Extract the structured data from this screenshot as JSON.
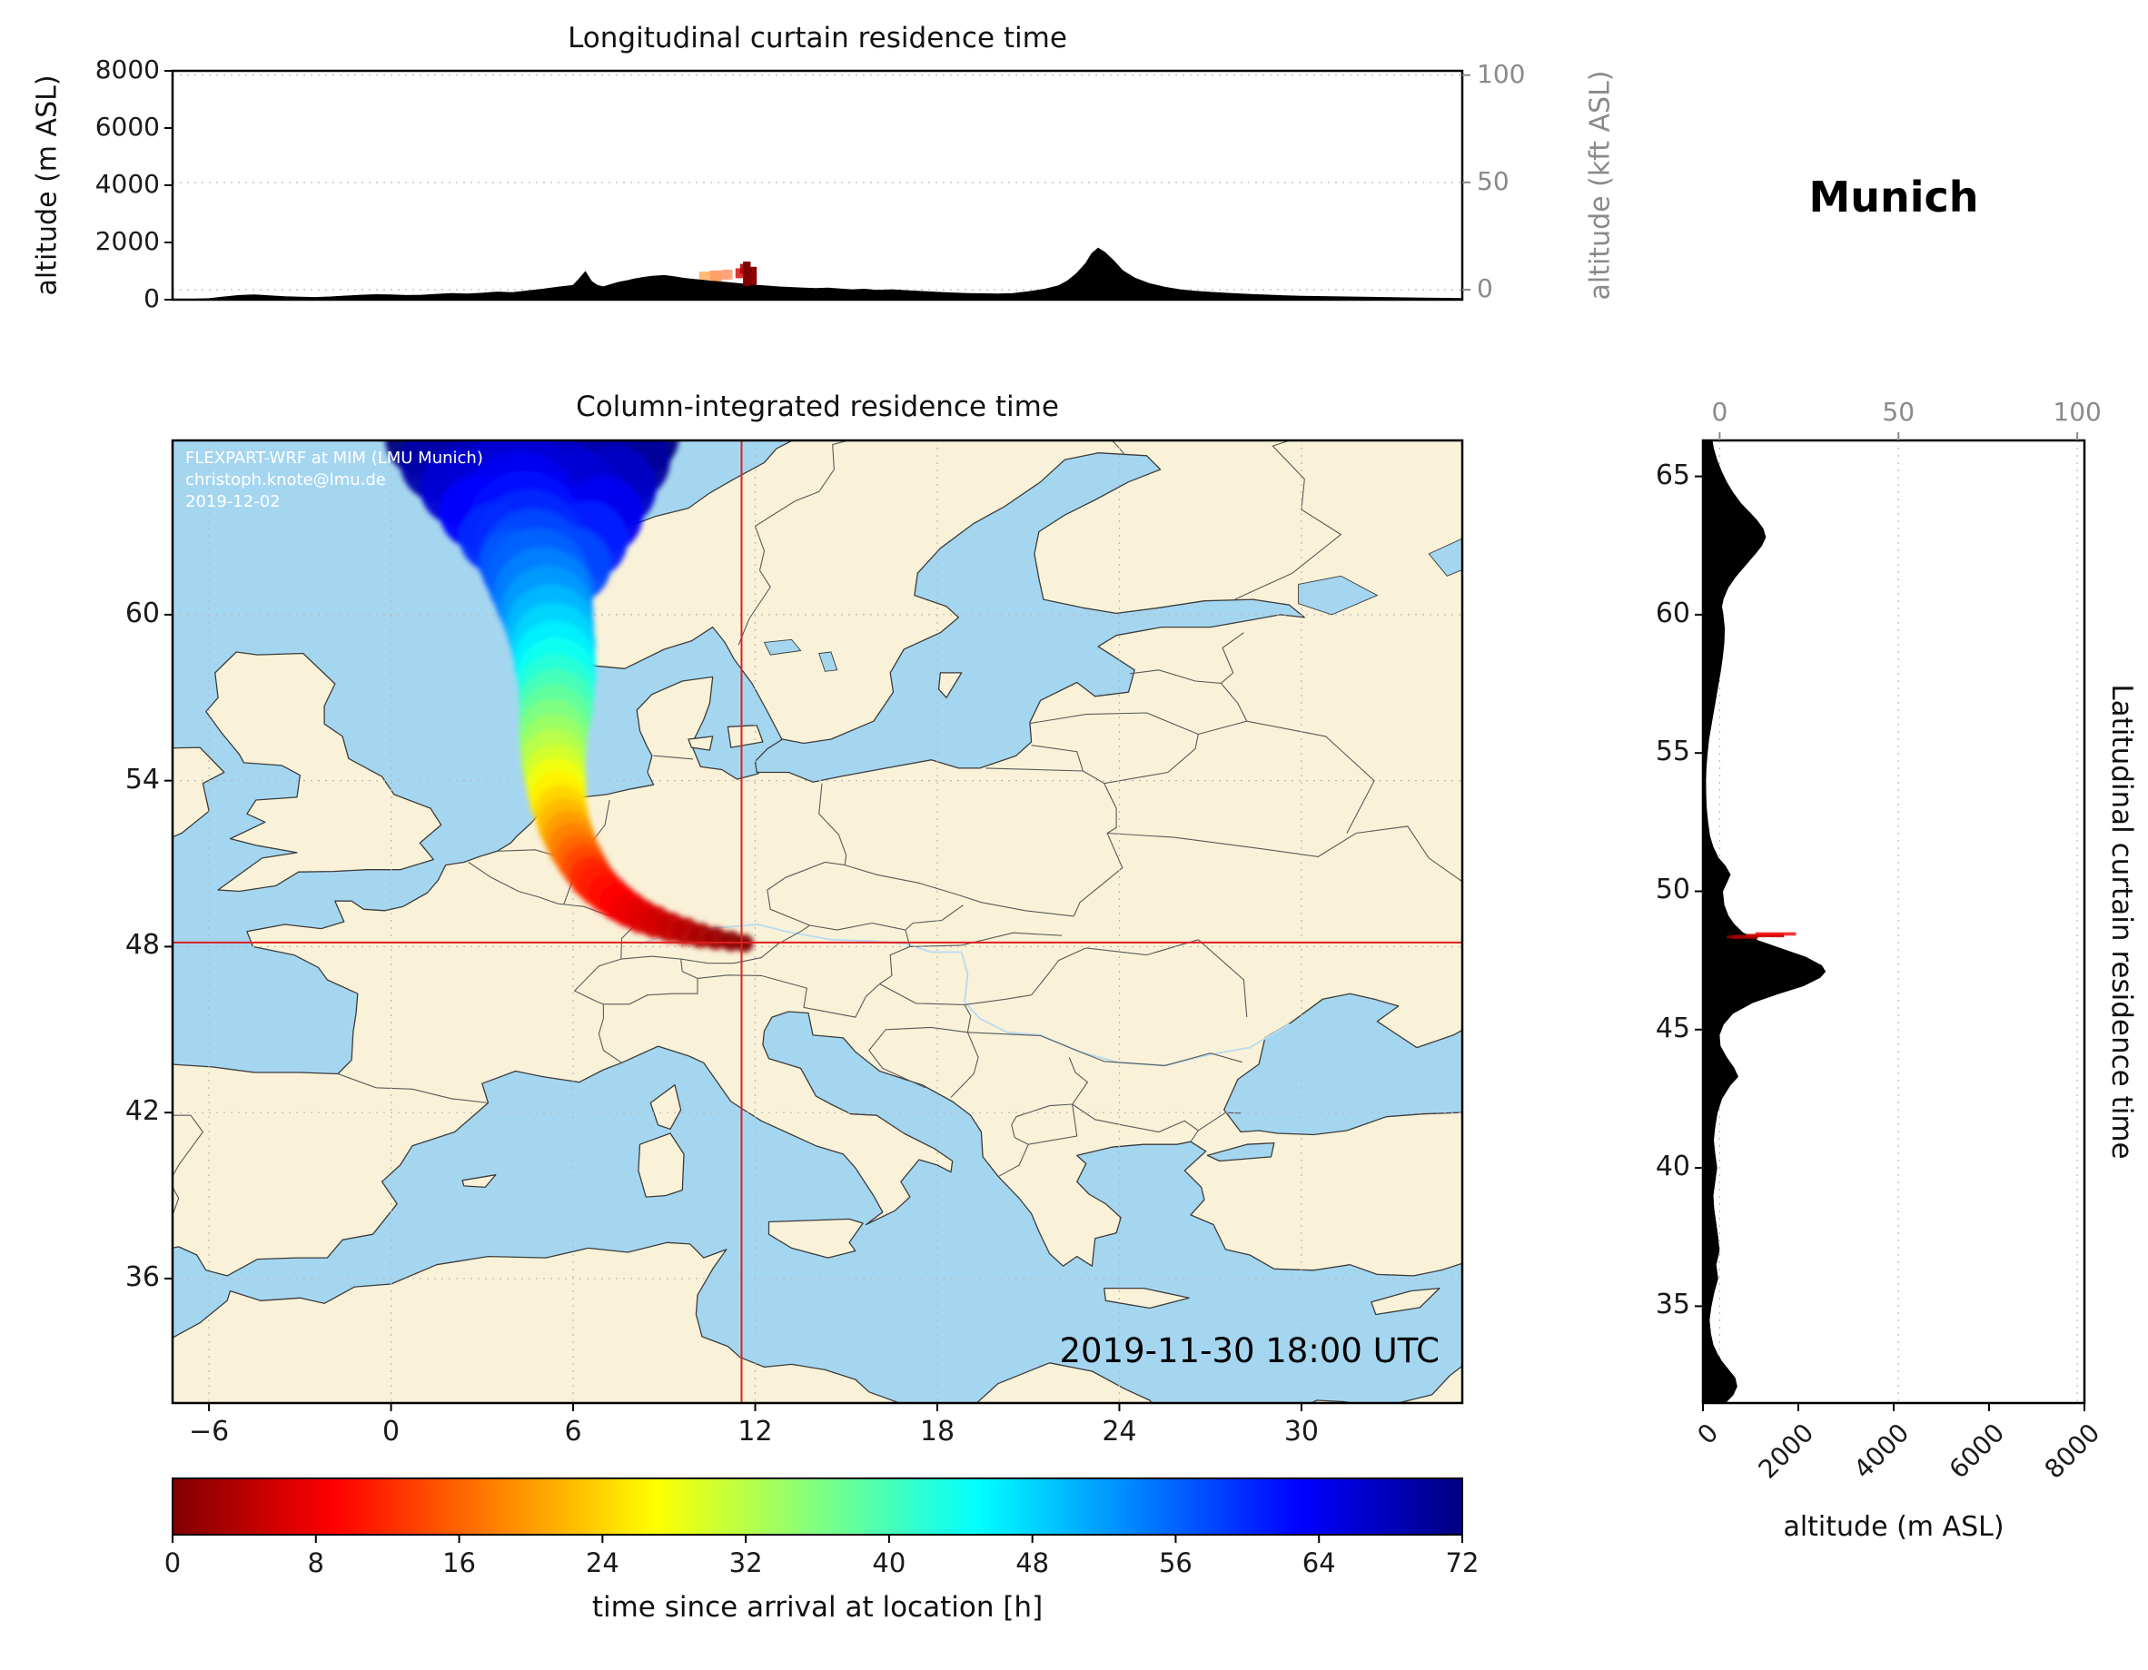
{
  "meta": {
    "location_title": "Munich",
    "credit": [
      "FLEXPART-WRF at MIM (LMU Munich)",
      "christoph.knote@lmu.de",
      "2019-12-02"
    ],
    "timestamp": "2019-11-30 18:00 UTC"
  },
  "colors": {
    "ocean": "#a5d6f0",
    "land": "#f9f2d8",
    "coast": "#3c3c3c",
    "border": "#5a5a5a",
    "grid": "#b9b9b9",
    "crosshair": "#dd1f1f",
    "terrain": "#000000",
    "axis_gray": "#8a8a8a",
    "river": "#bcdcee"
  },
  "chart_data": [
    {
      "id": "longitudinal_curtain",
      "type": "area",
      "title": "Longitudinal curtain residence time",
      "ylabel_left": "altitude (m ASL)",
      "ylabel_right": "altitude (kft ASL)",
      "xlim": [
        -7.2,
        35.3
      ],
      "ylim": [
        0,
        8000
      ],
      "yticks_left": [
        0,
        2000,
        4000,
        6000,
        8000
      ],
      "yticks_right": [
        0,
        50,
        100
      ],
      "kft_to_m": {
        "offset": 350,
        "scale": 75
      },
      "terrain_profile": [
        [
          -7.2,
          0
        ],
        [
          -6.5,
          0
        ],
        [
          -6,
          20
        ],
        [
          -5.5,
          80
        ],
        [
          -5,
          130
        ],
        [
          -4.5,
          150
        ],
        [
          -4,
          120
        ],
        [
          -3.5,
          90
        ],
        [
          -3,
          70
        ],
        [
          -2.5,
          60
        ],
        [
          -2,
          80
        ],
        [
          -1.5,
          110
        ],
        [
          -1,
          140
        ],
        [
          -0.5,
          160
        ],
        [
          0,
          150
        ],
        [
          0.5,
          130
        ],
        [
          1,
          140
        ],
        [
          1.5,
          170
        ],
        [
          2,
          200
        ],
        [
          2.5,
          180
        ],
        [
          3,
          210
        ],
        [
          3.5,
          250
        ],
        [
          4,
          230
        ],
        [
          4.5,
          290
        ],
        [
          5,
          350
        ],
        [
          5.5,
          420
        ],
        [
          6,
          480
        ],
        [
          6.2,
          700
        ],
        [
          6.4,
          950
        ],
        [
          6.6,
          620
        ],
        [
          6.8,
          480
        ],
        [
          7,
          430
        ],
        [
          7.2,
          500
        ],
        [
          7.5,
          590
        ],
        [
          7.8,
          650
        ],
        [
          8,
          700
        ],
        [
          8.3,
          760
        ],
        [
          8.6,
          800
        ],
        [
          9,
          830
        ],
        [
          9.3,
          790
        ],
        [
          9.6,
          740
        ],
        [
          10,
          690
        ],
        [
          10.4,
          650
        ],
        [
          10.8,
          610
        ],
        [
          11.2,
          570
        ],
        [
          11.6,
          530
        ],
        [
          12,
          490
        ],
        [
          12.4,
          460
        ],
        [
          12.8,
          430
        ],
        [
          13.2,
          410
        ],
        [
          13.6,
          390
        ],
        [
          14,
          370
        ],
        [
          14.4,
          390
        ],
        [
          14.8,
          360
        ],
        [
          15.2,
          330
        ],
        [
          15.6,
          350
        ],
        [
          16,
          310
        ],
        [
          16.5,
          330
        ],
        [
          17,
          300
        ],
        [
          17.5,
          270
        ],
        [
          18,
          240
        ],
        [
          18.5,
          220
        ],
        [
          19,
          200
        ],
        [
          19.5,
          190
        ],
        [
          20,
          185
        ],
        [
          20.5,
          200
        ],
        [
          21,
          260
        ],
        [
          21.5,
          340
        ],
        [
          22,
          470
        ],
        [
          22.3,
          640
        ],
        [
          22.6,
          900
        ],
        [
          22.9,
          1250
        ],
        [
          23.1,
          1600
        ],
        [
          23.3,
          1780
        ],
        [
          23.5,
          1650
        ],
        [
          23.8,
          1350
        ],
        [
          24.1,
          1000
        ],
        [
          24.5,
          740
        ],
        [
          25,
          540
        ],
        [
          25.5,
          420
        ],
        [
          26,
          330
        ],
        [
          26.5,
          280
        ],
        [
          27,
          240
        ],
        [
          27.5,
          210
        ],
        [
          28,
          180
        ],
        [
          28.5,
          160
        ],
        [
          29,
          140
        ],
        [
          29.5,
          120
        ],
        [
          30,
          105
        ],
        [
          31,
          90
        ],
        [
          32,
          70
        ],
        [
          33,
          55
        ],
        [
          34,
          40
        ],
        [
          35.3,
          25
        ]
      ],
      "residence_cells": [
        {
          "x0": 10.15,
          "x1": 10.5,
          "y0": 700,
          "y1": 980,
          "t": 18,
          "opacity": 0.55
        },
        {
          "x0": 10.5,
          "x1": 10.9,
          "y0": 650,
          "y1": 1020,
          "t": 16,
          "opacity": 0.6
        },
        {
          "x0": 10.9,
          "x1": 11.25,
          "y0": 700,
          "y1": 1050,
          "t": 14,
          "opacity": 0.5
        },
        {
          "x0": 11.35,
          "x1": 11.6,
          "y0": 750,
          "y1": 1100,
          "t": 6,
          "opacity": 0.8
        },
        {
          "x0": 11.6,
          "x1": 11.85,
          "y0": 480,
          "y1": 1330,
          "t": 0,
          "opacity": 1
        },
        {
          "x0": 11.85,
          "x1": 12.05,
          "y0": 520,
          "y1": 1150,
          "t": 1,
          "opacity": 1
        },
        {
          "x0": 11.5,
          "x1": 11.62,
          "y0": 900,
          "y1": 1250,
          "t": 3,
          "opacity": 0.9
        }
      ]
    },
    {
      "id": "column_integrated_map",
      "type": "heatmap",
      "title": "Column-integrated residence time",
      "xlim": [
        -7.2,
        35.3
      ],
      "ylim": [
        31.5,
        66.3
      ],
      "xticks": [
        -6,
        0,
        6,
        12,
        18,
        24,
        30
      ],
      "xtick_labels": [
        "−6",
        "0",
        "6",
        "12",
        "18",
        "24",
        "30"
      ],
      "yticks": [
        36,
        42,
        48,
        54,
        60
      ],
      "ytick_labels": [
        "36",
        "42",
        "48",
        "54",
        "60"
      ],
      "source": {
        "name": "Munich",
        "lon": 11.55,
        "lat": 48.15
      },
      "plume_points": [
        [
          11.65,
          48.12,
          0.3,
          0
        ],
        [
          11.2,
          48.2,
          0.34,
          1
        ],
        [
          10.7,
          48.3,
          0.38,
          2
        ],
        [
          10.2,
          48.4,
          0.42,
          3
        ],
        [
          9.7,
          48.55,
          0.46,
          4
        ],
        [
          9.2,
          48.7,
          0.5,
          5
        ],
        [
          8.7,
          48.9,
          0.54,
          6
        ],
        [
          8.25,
          49.1,
          0.57,
          7
        ],
        [
          7.85,
          49.35,
          0.6,
          8
        ],
        [
          7.5,
          49.6,
          0.63,
          9
        ],
        [
          7.15,
          49.9,
          0.66,
          10
        ],
        [
          6.85,
          50.2,
          0.69,
          11
        ],
        [
          6.6,
          50.5,
          0.72,
          12
        ],
        [
          6.4,
          50.85,
          0.75,
          14
        ],
        [
          6.2,
          51.2,
          0.78,
          16
        ],
        [
          6.0,
          51.6,
          0.81,
          18
        ],
        [
          5.85,
          52.0,
          0.84,
          20
        ],
        [
          5.7,
          52.4,
          0.87,
          22
        ],
        [
          5.6,
          52.85,
          0.9,
          24
        ],
        [
          5.5,
          53.3,
          0.94,
          26
        ],
        [
          5.45,
          53.75,
          0.98,
          28
        ],
        [
          5.4,
          54.2,
          1.02,
          30
        ],
        [
          5.35,
          54.7,
          1.06,
          32
        ],
        [
          5.35,
          55.2,
          1.1,
          34
        ],
        [
          5.35,
          55.7,
          1.14,
          36
        ],
        [
          5.4,
          56.2,
          1.18,
          38
        ],
        [
          5.45,
          56.7,
          1.22,
          40
        ],
        [
          5.45,
          57.2,
          1.26,
          42
        ],
        [
          5.45,
          57.75,
          1.3,
          44
        ],
        [
          5.4,
          58.3,
          1.35,
          46
        ],
        [
          5.35,
          58.9,
          1.4,
          48
        ],
        [
          5.25,
          59.5,
          1.45,
          50
        ],
        [
          5.15,
          60.1,
          1.52,
          52
        ],
        [
          5.0,
          60.7,
          1.6,
          54
        ],
        [
          4.85,
          61.3,
          1.68,
          56
        ],
        [
          4.7,
          61.9,
          1.76,
          58
        ],
        [
          4.55,
          62.5,
          1.84,
          60
        ],
        [
          4.4,
          63.1,
          1.92,
          62
        ],
        [
          4.25,
          63.7,
          2.0,
          64
        ],
        [
          4.1,
          64.3,
          2.1,
          66
        ],
        [
          3.9,
          64.9,
          2.2,
          68
        ],
        [
          3.7,
          65.5,
          2.3,
          70
        ],
        [
          3.45,
          66.1,
          2.4,
          71
        ],
        [
          3.2,
          66.6,
          2.5,
          72
        ],
        [
          5.5,
          60.9,
          1.2,
          55
        ],
        [
          6.0,
          61.8,
          1.25,
          58
        ],
        [
          6.5,
          62.7,
          1.3,
          61
        ],
        [
          7.0,
          63.6,
          1.3,
          64
        ],
        [
          7.4,
          64.6,
          1.35,
          67
        ],
        [
          7.8,
          65.6,
          1.4,
          70
        ],
        [
          8.1,
          66.5,
          1.4,
          72
        ],
        [
          4.0,
          61.9,
          1.1,
          57
        ],
        [
          3.4,
          62.8,
          1.15,
          60
        ],
        [
          2.8,
          63.7,
          1.2,
          63
        ],
        [
          2.2,
          64.6,
          1.25,
          66
        ],
        [
          1.6,
          65.5,
          1.3,
          69
        ],
        [
          1.1,
          66.4,
          1.3,
          72
        ],
        [
          2.9,
          65.2,
          1.0,
          68
        ],
        [
          2.4,
          66.0,
          1.05,
          71
        ],
        [
          6.2,
          64.8,
          1.1,
          66
        ],
        [
          6.7,
          65.8,
          1.15,
          69
        ],
        [
          4.9,
          65.3,
          1.6,
          67
        ],
        [
          4.7,
          66.2,
          1.7,
          70
        ]
      ]
    },
    {
      "id": "latitudinal_curtain",
      "type": "area",
      "title": "Latitudinal curtain residence time",
      "xlabel": "altitude (m ASL)",
      "xlim": [
        0,
        8000
      ],
      "ylim": [
        31.5,
        66.3
      ],
      "xticks_bottom": [
        0,
        2000,
        4000,
        6000,
        8000
      ],
      "xticks_top": [
        0,
        50,
        100
      ],
      "yticks": [
        35,
        40,
        45,
        50,
        55,
        60,
        65
      ],
      "terrain_profile": [
        [
          31.5,
          450
        ],
        [
          31.8,
          620
        ],
        [
          32.1,
          700
        ],
        [
          32.4,
          660
        ],
        [
          32.7,
          520
        ],
        [
          33,
          380
        ],
        [
          33.3,
          280
        ],
        [
          33.6,
          200
        ],
        [
          34,
          150
        ],
        [
          34.5,
          120
        ],
        [
          35,
          160
        ],
        [
          35.5,
          220
        ],
        [
          36,
          300
        ],
        [
          36.5,
          260
        ],
        [
          37,
          330
        ],
        [
          37.5,
          300
        ],
        [
          38,
          260
        ],
        [
          38.5,
          220
        ],
        [
          39,
          200
        ],
        [
          39.5,
          240
        ],
        [
          40,
          280
        ],
        [
          40.5,
          240
        ],
        [
          41,
          210
        ],
        [
          41.5,
          240
        ],
        [
          42,
          290
        ],
        [
          42.5,
          380
        ],
        [
          43,
          560
        ],
        [
          43.3,
          720
        ],
        [
          43.6,
          640
        ],
        [
          44,
          480
        ],
        [
          44.4,
          350
        ],
        [
          44.8,
          330
        ],
        [
          45.2,
          420
        ],
        [
          45.6,
          620
        ],
        [
          46,
          1050
        ],
        [
          46.3,
          1550
        ],
        [
          46.6,
          2100
        ],
        [
          46.9,
          2450
        ],
        [
          47.1,
          2550
        ],
        [
          47.3,
          2480
        ],
        [
          47.6,
          2150
        ],
        [
          47.9,
          1650
        ],
        [
          48.2,
          1150
        ],
        [
          48.5,
          820
        ],
        [
          48.8,
          640
        ],
        [
          49.1,
          520
        ],
        [
          49.5,
          430
        ],
        [
          50,
          400
        ],
        [
          50.3,
          480
        ],
        [
          50.6,
          560
        ],
        [
          50.9,
          460
        ],
        [
          51.2,
          310
        ],
        [
          51.6,
          200
        ],
        [
          52,
          130
        ],
        [
          52.5,
          90
        ],
        [
          53,
          60
        ],
        [
          53.5,
          50
        ],
        [
          54,
          45
        ],
        [
          54.5,
          55
        ],
        [
          55,
          80
        ],
        [
          55.5,
          110
        ],
        [
          56,
          160
        ],
        [
          56.5,
          210
        ],
        [
          57,
          260
        ],
        [
          57.5,
          310
        ],
        [
          58,
          360
        ],
        [
          58.5,
          400
        ],
        [
          59,
          430
        ],
        [
          59.5,
          440
        ],
        [
          60,
          410
        ],
        [
          60.3,
          380
        ],
        [
          60.6,
          420
        ],
        [
          61,
          520
        ],
        [
          61.4,
          680
        ],
        [
          61.8,
          880
        ],
        [
          62.2,
          1080
        ],
        [
          62.5,
          1220
        ],
        [
          62.8,
          1300
        ],
        [
          63.1,
          1250
        ],
        [
          63.4,
          1120
        ],
        [
          63.7,
          960
        ],
        [
          64,
          790
        ],
        [
          64.4,
          620
        ],
        [
          64.8,
          480
        ],
        [
          65.2,
          370
        ],
        [
          65.6,
          280
        ],
        [
          66,
          210
        ],
        [
          66.3,
          180
        ]
      ],
      "residence_cells": [
        {
          "y0": 48.3,
          "y1": 48.4,
          "x0": 500,
          "x1": 800,
          "t": 0,
          "opacity": 1
        },
        {
          "y0": 48.28,
          "y1": 48.42,
          "x0": 600,
          "x1": 1150,
          "t": 2,
          "opacity": 1
        },
        {
          "y0": 48.34,
          "y1": 48.46,
          "x0": 900,
          "x1": 1700,
          "t": 5,
          "opacity": 0.9
        },
        {
          "y0": 48.4,
          "y1": 48.52,
          "x0": 1100,
          "x1": 1950,
          "t": 8,
          "opacity": 0.8
        }
      ]
    },
    {
      "id": "colorbar",
      "type": "colorbar",
      "label": "time since arrival at location [h]",
      "range": [
        0,
        72
      ],
      "ticks": [
        0,
        8,
        16,
        24,
        32,
        40,
        48,
        56,
        64,
        72
      ],
      "colormap": "jet_reversed"
    }
  ]
}
